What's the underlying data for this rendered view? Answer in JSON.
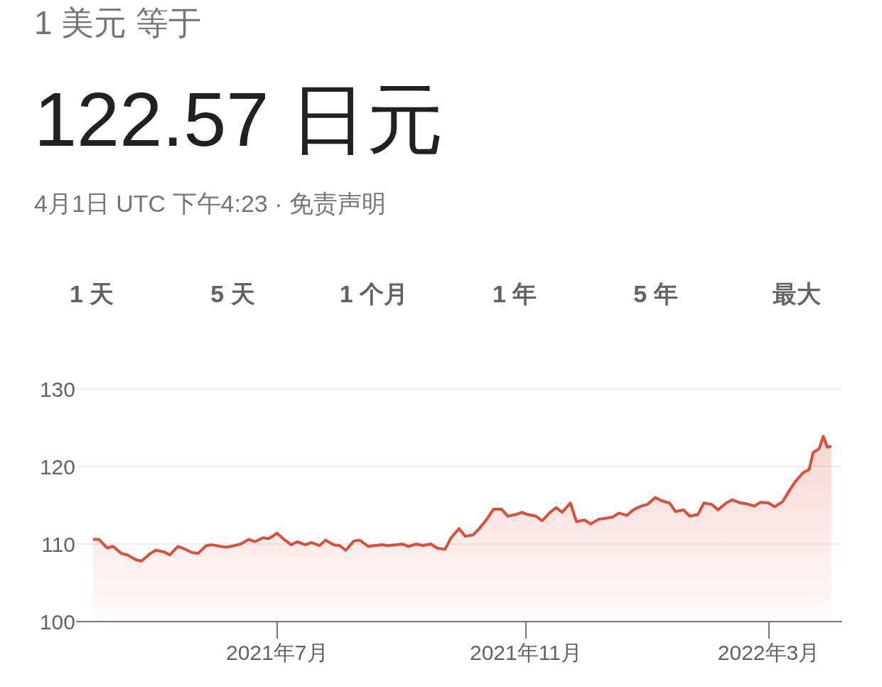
{
  "chart_data": {
    "type": "area",
    "subtitle": "1 美元 等于",
    "title": "122.57 日元",
    "annotations": [
      "4月1日 UTC 下午4:23 · 免责声明",
      "1 天",
      "5 天",
      "1 个月",
      "1 年",
      "5 年",
      "最大"
    ],
    "xlim": [
      "2021-03-24",
      "2022-04-06"
    ],
    "xticks": [
      {
        "value": "2021-07-01",
        "label": "2021年7月"
      },
      {
        "value": "2021-11-01",
        "label": "2021年11月"
      },
      {
        "value": "2022-03-01",
        "label": "2022年3月"
      }
    ],
    "ylim": [
      100,
      130
    ],
    "yticks": [
      100,
      110,
      120,
      130
    ],
    "grid": "y",
    "series": [
      {
        "color": "#d94f3d",
        "x": [
          "2021-04-01",
          "2021-04-04",
          "2021-04-08",
          "2021-04-11",
          "2021-04-15",
          "2021-04-18",
          "2021-04-22",
          "2021-04-25",
          "2021-04-29",
          "2021-05-02",
          "2021-05-06",
          "2021-05-09",
          "2021-05-13",
          "2021-05-16",
          "2021-05-20",
          "2021-05-23",
          "2021-05-27",
          "2021-05-30",
          "2021-06-03",
          "2021-06-06",
          "2021-06-10",
          "2021-06-13",
          "2021-06-17",
          "2021-06-20",
          "2021-06-24",
          "2021-06-27",
          "2021-07-01",
          "2021-07-04",
          "2021-07-08",
          "2021-07-11",
          "2021-07-15",
          "2021-07-18",
          "2021-07-22",
          "2021-07-25",
          "2021-07-29",
          "2021-08-01",
          "2021-08-04",
          "2021-08-08",
          "2021-08-11",
          "2021-08-15",
          "2021-08-18",
          "2021-08-22",
          "2021-08-25",
          "2021-08-29",
          "2021-09-01",
          "2021-09-04",
          "2021-09-08",
          "2021-09-11",
          "2021-09-15",
          "2021-09-18",
          "2021-09-22",
          "2021-09-25",
          "2021-09-29",
          "2021-10-02",
          "2021-10-06",
          "2021-10-09",
          "2021-10-13",
          "2021-10-16",
          "2021-10-20",
          "2021-10-23",
          "2021-10-27",
          "2021-10-30",
          "2021-11-02",
          "2021-11-06",
          "2021-11-09",
          "2021-11-13",
          "2021-11-16",
          "2021-11-19",
          "2021-11-23",
          "2021-11-26",
          "2021-11-30",
          "2021-12-03",
          "2021-12-07",
          "2021-12-10",
          "2021-12-14",
          "2021-12-17",
          "2021-12-21",
          "2021-12-24",
          "2021-12-28",
          "2021-12-31",
          "2022-01-04",
          "2022-01-07",
          "2022-01-11",
          "2022-01-14",
          "2022-01-18",
          "2022-01-21",
          "2022-01-25",
          "2022-01-28",
          "2022-02-01",
          "2022-02-04",
          "2022-02-08",
          "2022-02-11",
          "2022-02-15",
          "2022-02-18",
          "2022-02-22",
          "2022-02-25",
          "2022-03-01",
          "2022-03-04",
          "2022-03-08",
          "2022-03-11",
          "2022-03-14",
          "2022-03-18",
          "2022-03-21",
          "2022-03-23",
          "2022-03-26",
          "2022-03-28",
          "2022-03-30",
          "2022-04-01"
        ],
        "values": [
          110.6,
          110.6,
          109.5,
          109.7,
          108.8,
          108.6,
          108.0,
          107.8,
          108.7,
          109.2,
          109.0,
          108.6,
          109.7,
          109.4,
          108.9,
          108.8,
          109.8,
          109.9,
          109.7,
          109.6,
          109.8,
          110.0,
          110.6,
          110.3,
          110.8,
          110.7,
          111.4,
          110.7,
          109.9,
          110.3,
          109.9,
          110.2,
          109.8,
          110.5,
          109.9,
          109.8,
          109.2,
          110.4,
          110.5,
          109.7,
          109.8,
          109.9,
          109.8,
          109.9,
          110.0,
          109.7,
          110.0,
          109.8,
          110.0,
          109.5,
          109.3,
          110.8,
          112.0,
          111.0,
          111.2,
          112.0,
          113.3,
          114.5,
          114.5,
          113.6,
          113.8,
          114.1,
          113.8,
          113.6,
          113.0,
          114.1,
          114.7,
          114.1,
          115.3,
          112.9,
          113.1,
          112.6,
          113.2,
          113.3,
          113.5,
          114.0,
          113.7,
          114.4,
          114.9,
          115.1,
          116.0,
          115.6,
          115.3,
          114.2,
          114.4,
          113.6,
          113.8,
          115.3,
          115.1,
          114.4,
          115.3,
          115.7,
          115.3,
          115.2,
          114.9,
          115.4,
          115.3,
          114.8,
          115.5,
          116.8,
          118.0,
          119.2,
          119.6,
          121.8,
          122.3,
          123.9,
          122.5,
          122.6
        ]
      }
    ]
  }
}
